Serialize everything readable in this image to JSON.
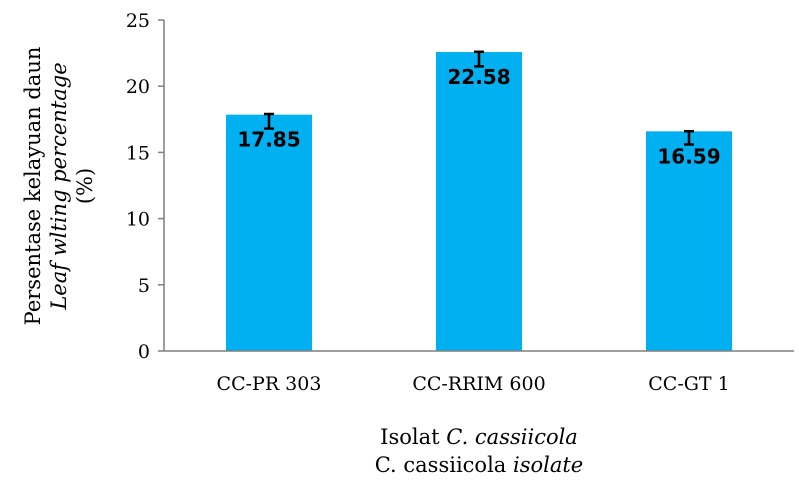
{
  "chart_data": {
    "type": "bar",
    "categories": [
      "CC-PR 303",
      "CC-RRIM 600",
      "CC-GT 1"
    ],
    "values": [
      17.85,
      22.58,
      16.59
    ],
    "value_labels": [
      "17.85",
      "22.58",
      "16.59"
    ],
    "error_top": [
      17.9,
      22.6,
      16.6
    ],
    "error_bottom": [
      16.8,
      21.5,
      15.6
    ],
    "ylim": [
      0,
      25
    ],
    "yticks": [
      "0",
      "5",
      "10",
      "15",
      "20",
      "25"
    ],
    "bar_color": "#00b0f0",
    "grid": false,
    "ylabel": {
      "line1": "Persentase kelayuan daun",
      "line2": "Leaf wlting percentage",
      "line3": "(%)"
    },
    "xlabel": {
      "line1_normal": "Isolat ",
      "line1_italic": "C. cassiicola",
      "line2_normal": "C. cassiicola ",
      "line2_italic": "isolate"
    }
  }
}
